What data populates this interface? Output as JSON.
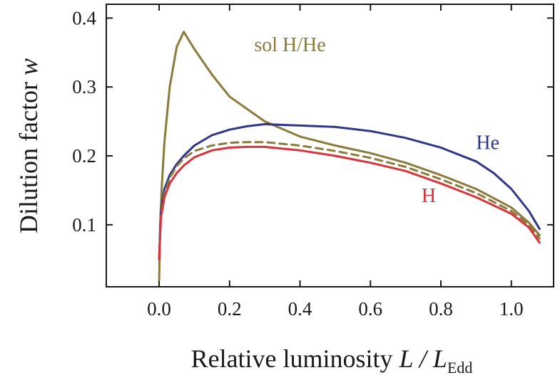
{
  "chart_data": {
    "type": "line",
    "xlabel": {
      "main": "Relative luminosity ",
      "var": "L / L",
      "sub": "Edd"
    },
    "ylabel": {
      "main": "Dilution factor ",
      "var": "w"
    },
    "xlim": [
      -0.15,
      1.12
    ],
    "ylim": [
      0.01,
      0.42
    ],
    "xticks": [
      0.0,
      0.2,
      0.4,
      0.6,
      0.8,
      1.0
    ],
    "xtick_labels": [
      "0.0",
      "0.2",
      "0.4",
      "0.6",
      "0.8",
      "1.0"
    ],
    "yticks": [
      0.1,
      0.2,
      0.3,
      0.4
    ],
    "ytick_labels": [
      "0.1",
      "0.2",
      "0.3",
      "0.4"
    ],
    "grid": false,
    "series": [
      {
        "name": "sol H/He",
        "color": "#8c7a3a",
        "dash": "solid",
        "x": [
          0.0,
          0.003,
          0.008,
          0.015,
          0.03,
          0.05,
          0.07,
          0.1,
          0.15,
          0.2,
          0.3,
          0.4,
          0.5,
          0.6,
          0.7,
          0.8,
          0.9,
          1.0,
          1.05,
          1.08
        ],
        "y": [
          0.02,
          0.1,
          0.16,
          0.22,
          0.3,
          0.358,
          0.38,
          0.355,
          0.318,
          0.286,
          0.25,
          0.228,
          0.215,
          0.204,
          0.19,
          0.172,
          0.152,
          0.125,
          0.103,
          0.085
        ]
      },
      {
        "name": "He",
        "color": "#2f3689",
        "dash": "solid",
        "x": [
          0.0,
          0.005,
          0.015,
          0.03,
          0.05,
          0.07,
          0.1,
          0.15,
          0.2,
          0.25,
          0.3,
          0.35,
          0.4,
          0.5,
          0.6,
          0.7,
          0.8,
          0.9,
          0.95,
          1.0,
          1.05,
          1.08
        ],
        "y": [
          0.05,
          0.12,
          0.152,
          0.172,
          0.188,
          0.2,
          0.215,
          0.23,
          0.238,
          0.243,
          0.246,
          0.245,
          0.244,
          0.242,
          0.236,
          0.226,
          0.212,
          0.192,
          0.175,
          0.152,
          0.12,
          0.094
        ]
      },
      {
        "name": "",
        "color": "#8c7a3a",
        "dash": "dashed",
        "x": [
          0.0,
          0.005,
          0.015,
          0.03,
          0.05,
          0.07,
          0.1,
          0.15,
          0.2,
          0.25,
          0.3,
          0.4,
          0.5,
          0.6,
          0.7,
          0.8,
          0.9,
          1.0,
          1.05,
          1.08
        ],
        "y": [
          0.05,
          0.115,
          0.145,
          0.168,
          0.185,
          0.196,
          0.207,
          0.215,
          0.219,
          0.22,
          0.22,
          0.215,
          0.207,
          0.197,
          0.184,
          0.166,
          0.146,
          0.12,
          0.1,
          0.08
        ]
      },
      {
        "name": "H",
        "color": "#d8333a",
        "dash": "solid",
        "x": [
          0.0,
          0.005,
          0.015,
          0.03,
          0.05,
          0.07,
          0.1,
          0.15,
          0.2,
          0.25,
          0.3,
          0.4,
          0.5,
          0.6,
          0.7,
          0.8,
          0.9,
          1.0,
          1.05,
          1.08
        ],
        "y": [
          0.05,
          0.11,
          0.14,
          0.16,
          0.175,
          0.186,
          0.198,
          0.208,
          0.212,
          0.213,
          0.213,
          0.208,
          0.2,
          0.19,
          0.178,
          0.16,
          0.14,
          0.116,
          0.096,
          0.074
        ]
      }
    ],
    "annotations": [
      {
        "text": "sol H/He",
        "x": 0.27,
        "y": 0.352,
        "color": "#8c7a3a"
      },
      {
        "text": "He",
        "x": 0.9,
        "y": 0.21,
        "color": "#2f3689"
      },
      {
        "text": "H",
        "x": 0.745,
        "y": 0.133,
        "color": "#d8333a"
      }
    ]
  }
}
